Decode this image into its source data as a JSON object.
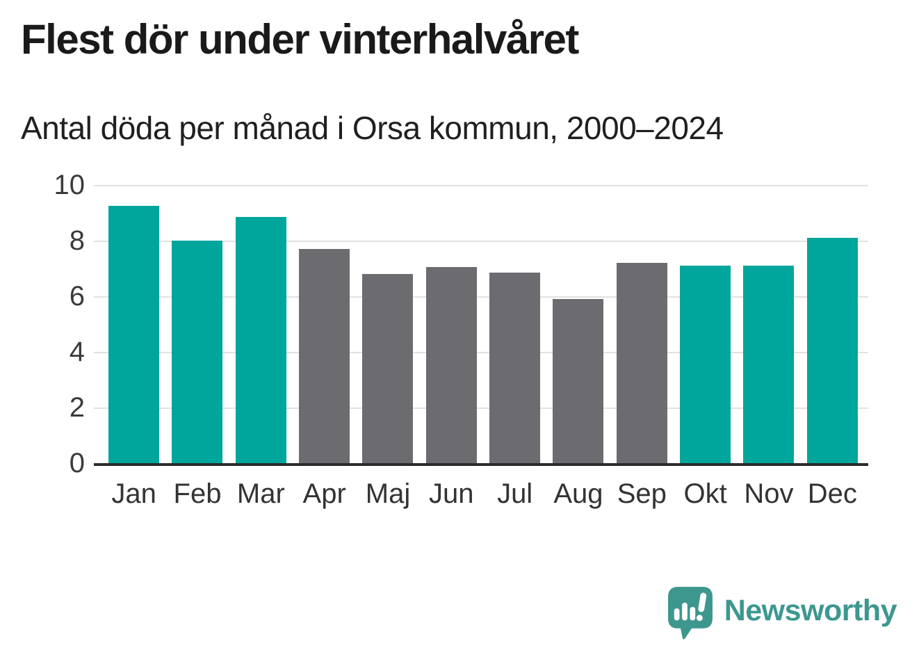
{
  "page": {
    "title": "Flest dör under vinterhalvåret",
    "subtitle": "Antal döda per månad i Orsa kommun, 2000–2024"
  },
  "chart_data": {
    "type": "bar",
    "categories": [
      "Jan",
      "Feb",
      "Mar",
      "Apr",
      "Maj",
      "Jun",
      "Jul",
      "Aug",
      "Sep",
      "Okt",
      "Nov",
      "Dec"
    ],
    "values": [
      9.25,
      8.0,
      8.85,
      7.7,
      6.8,
      7.05,
      6.85,
      5.9,
      7.2,
      7.1,
      7.1,
      8.1
    ],
    "bar_colors": [
      "teal",
      "teal",
      "teal",
      "gray",
      "gray",
      "gray",
      "gray",
      "gray",
      "gray",
      "teal",
      "teal",
      "teal"
    ],
    "palette": {
      "teal": "#00a59c",
      "gray": "#6c6b70"
    },
    "title": "Flest dör under vinterhalvåret",
    "xlabel": "",
    "ylabel": "",
    "ylim": [
      0,
      10
    ],
    "yticks": [
      0,
      2,
      4,
      6,
      8,
      10
    ],
    "grid": "horizontal",
    "legend": "none"
  },
  "branding": {
    "wordmark": "Newsworthy",
    "brand_color": "#3d978f"
  },
  "colors": {
    "title_text": "#1a1a1a",
    "axis_line": "#2b2b2b",
    "gridline": "#e1e1e1",
    "tick_label": "#3a3a3a"
  }
}
